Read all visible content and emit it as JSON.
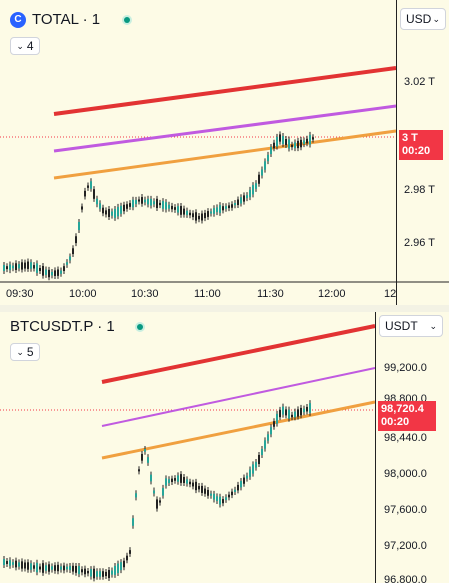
{
  "pane1": {
    "symbol": "TOTAL · 1",
    "logo_glyph": "C",
    "interval_count": "4",
    "currency": "USD",
    "price_labels": [
      "3.02 T",
      "2.98 T",
      "2.96 T"
    ],
    "last_price": "3 T",
    "countdown": "00:20",
    "time_labels": [
      "09:30",
      "10:00",
      "10:30",
      "11:00",
      "11:30",
      "12:00",
      "12"
    ],
    "icons": [
      "coin-logo-icon",
      "live-status-icon",
      "chevron-down-icon"
    ],
    "colors": {
      "red_line": "#e23333",
      "purple_line": "#c05ae0",
      "orange_line": "#f0a040",
      "price_tag": "#f23645",
      "candle": "#222222",
      "up": "#26a69a"
    }
  },
  "pane2": {
    "symbol": "BTCUSDT.P · 1",
    "interval_count": "5",
    "currency": "USDT",
    "price_labels": [
      "99,200.0",
      "98,800.0",
      "98,440.0",
      "98,000.0",
      "97,600.0",
      "97,200.0",
      "96,800.0"
    ],
    "last_price": "98,720.4",
    "countdown": "00:20",
    "icons": [
      "live-status-icon",
      "chevron-down-icon"
    ]
  }
}
